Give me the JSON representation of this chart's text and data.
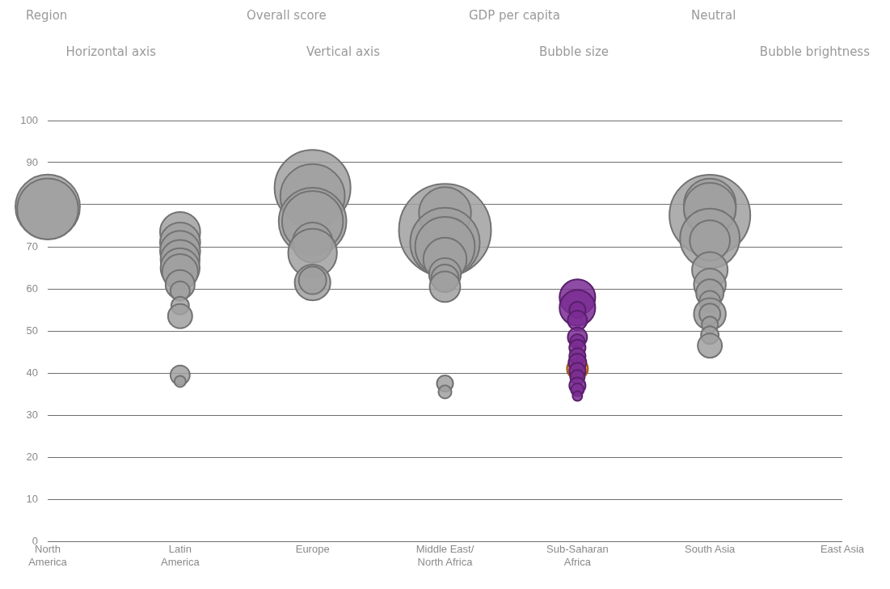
{
  "chart_data": {
    "type": "bubble",
    "annotations": [
      "Region",
      "Overall score",
      "GDP per capita",
      "Neutral",
      "Horizontal axis",
      "Vertical axis",
      "Bubble size",
      "Bubble brightness"
    ],
    "categories": [
      "North America",
      "Latin America",
      "Europe",
      "Middle East/North Africa",
      "Sub-Saharan Africa",
      "South Asia",
      "East Asia"
    ],
    "ylim": [
      0,
      100
    ],
    "yticks": [
      0,
      10,
      20,
      30,
      40,
      50,
      60,
      70,
      {
        "value": 80,
        "label": null
      },
      90,
      100
    ],
    "grid": "y",
    "legend": false,
    "series": [
      {
        "color": "#a0a0a0",
        "x": [
          "North America",
          "North America",
          "Latin America",
          "Latin America",
          "Latin America",
          "Latin America",
          "Latin America",
          "Latin America",
          "Latin America",
          "Latin America",
          "Latin America",
          "Latin America",
          "Latin America",
          "Latin America",
          "Europe",
          "Europe",
          "Europe",
          "Europe",
          "Europe",
          "Europe",
          "Europe",
          "Europe",
          "Middle East/North Africa",
          "Middle East/North Africa",
          "Middle East/North Africa",
          "Middle East/North Africa",
          "Middle East/North Africa",
          "Middle East/North Africa",
          "Middle East/North Africa",
          "Middle East/North Africa",
          "Middle East/North Africa",
          "Middle East/North Africa",
          "South Asia",
          "South Asia",
          "South Asia",
          "South Asia",
          "South Asia",
          "South Asia",
          "South Asia",
          "South Asia",
          "South Asia",
          "South Asia",
          "South Asia",
          "South Asia",
          "South Asia",
          "South Asia"
        ],
        "values": [
          79.5,
          79,
          73.5,
          71,
          69,
          67,
          65,
          64,
          61,
          59.5,
          56,
          53.5,
          39.5,
          38,
          84,
          82,
          76,
          76,
          71,
          68.5,
          61.5,
          62,
          74,
          78,
          71,
          70,
          67,
          63.5,
          62.5,
          60.5,
          37.5,
          35.5,
          77.5,
          80,
          79,
          72,
          71.5,
          64.5,
          61,
          59,
          57,
          54,
          54,
          51.5,
          49,
          46.5
        ],
        "sizes": [
          0.49,
          0.44,
          0.19,
          0.19,
          0.19,
          0.18,
          0.18,
          0.15,
          0.1,
          0.044,
          0.037,
          0.069,
          0.044,
          0.015,
          0.68,
          0.49,
          0.54,
          0.44,
          0.19,
          0.28,
          0.15,
          0.089,
          1,
          0.32,
          0.57,
          0.42,
          0.22,
          0.12,
          0.089,
          0.11,
          0.031,
          0.02,
          0.77,
          0.32,
          0.32,
          0.42,
          0.19,
          0.15,
          0.12,
          0.089,
          0.052,
          0.12,
          0.052,
          0.031,
          0.037,
          0.069
        ]
      },
      {
        "color": "#7b2d94",
        "x": [
          "Sub-Saharan Africa",
          "Sub-Saharan Africa",
          "Sub-Saharan Africa",
          "Sub-Saharan Africa",
          "Sub-Saharan Africa",
          "Sub-Saharan Africa",
          "Sub-Saharan Africa",
          "Sub-Saharan Africa",
          "Sub-Saharan Africa",
          "Sub-Saharan Africa",
          "Sub-Saharan Africa",
          "Sub-Saharan Africa",
          "Sub-Saharan Africa",
          "Sub-Saharan Africa"
        ],
        "values": [
          58,
          55.5,
          55,
          52.5,
          48.5,
          47.5,
          46,
          44,
          42.5,
          40.5,
          39,
          37,
          36,
          34.5
        ],
        "sizes": [
          0.15,
          0.15,
          0.031,
          0.044,
          0.044,
          0.025,
          0.031,
          0.031,
          0.037,
          0.031,
          0.025,
          0.031,
          0.02,
          0.011
        ]
      },
      {
        "color": "#e07b28",
        "x": [
          "Sub-Saharan Africa"
        ],
        "values": [
          41
        ],
        "sizes": [
          0.052
        ]
      }
    ]
  }
}
